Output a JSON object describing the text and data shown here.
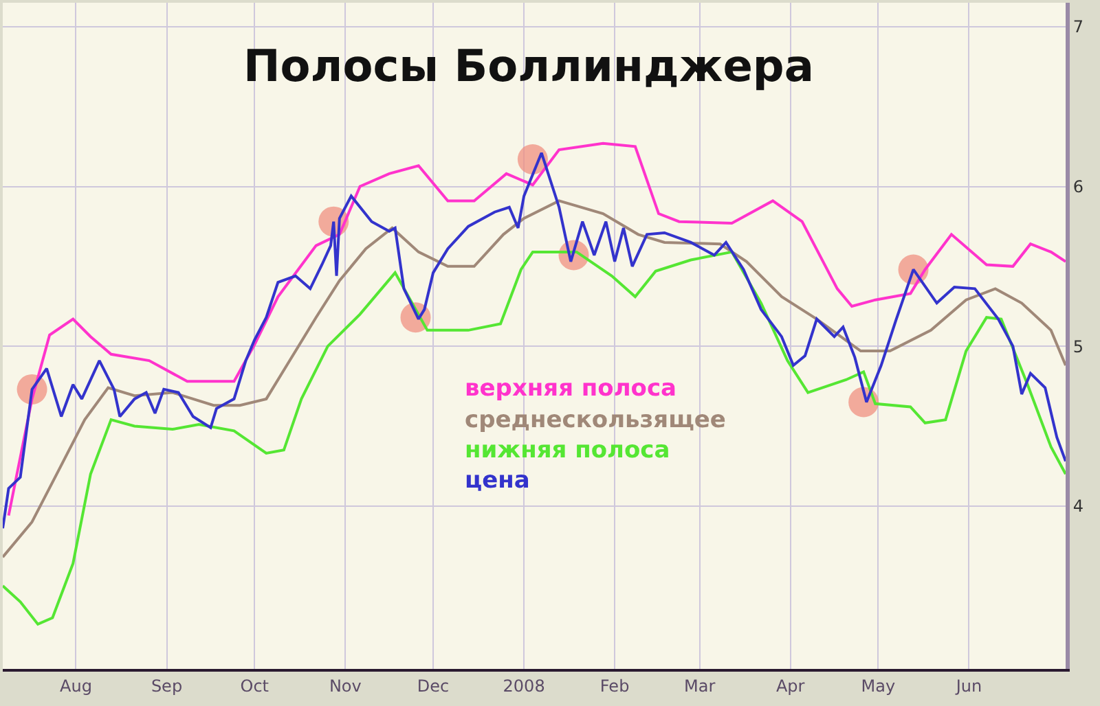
{
  "chart_data": {
    "type": "line",
    "title": "Полосы Боллинджера",
    "xlim": [
      "2007-07-07",
      "2008-07-04"
    ],
    "xticks": [
      {
        "value": "2007-08-01",
        "label": "Aug"
      },
      {
        "value": "2007-09-01",
        "label": "Sep"
      },
      {
        "value": "2007-10-01",
        "label": "Oct"
      },
      {
        "value": "2007-11-01",
        "label": "Nov"
      },
      {
        "value": "2007-12-01",
        "label": "Dec"
      },
      {
        "value": "2008-01-01",
        "label": "2008"
      },
      {
        "value": "2008-02-01",
        "label": "Feb"
      },
      {
        "value": "2008-03-01",
        "label": "Mar"
      },
      {
        "value": "2008-04-01",
        "label": "Apr"
      },
      {
        "value": "2008-05-01",
        "label": "May"
      },
      {
        "value": "2008-06-01",
        "label": "Jun"
      }
    ],
    "ylim": [
      2.98,
      7.15
    ],
    "yticks": [
      4,
      5,
      6,
      7
    ],
    "grid": true,
    "legend": false,
    "line_style": "solid",
    "marker": "none",
    "series": [
      {
        "name": "верхняя полоса",
        "color": "#ff33cc",
        "x": [
          "2007-07-09",
          "2007-07-17",
          "2007-07-23",
          "2007-07-31",
          "2007-08-06",
          "2007-08-13",
          "2007-08-26",
          "2007-09-08",
          "2007-09-24",
          "2007-10-01",
          "2007-10-09",
          "2007-10-22",
          "2007-10-30",
          "2007-11-06",
          "2007-11-16",
          "2007-11-26",
          "2007-12-06",
          "2007-12-15",
          "2007-12-26",
          "2008-01-04",
          "2008-01-13",
          "2008-01-28",
          "2008-02-08",
          "2008-02-16",
          "2008-02-23",
          "2008-03-12",
          "2008-03-26",
          "2008-04-05",
          "2008-04-17",
          "2008-04-22",
          "2008-04-30",
          "2008-05-12",
          "2008-05-17",
          "2008-05-26",
          "2008-06-07",
          "2008-06-16",
          "2008-06-22",
          "2008-06-29",
          "2008-07-04"
        ],
        "values": [
          3.94,
          4.67,
          5.07,
          5.17,
          5.06,
          4.95,
          4.91,
          4.78,
          4.78,
          5.01,
          5.31,
          5.63,
          5.7,
          6.0,
          6.08,
          6.13,
          5.91,
          5.91,
          6.08,
          6.01,
          6.23,
          6.27,
          6.25,
          5.83,
          5.78,
          5.77,
          5.91,
          5.78,
          5.36,
          5.25,
          5.29,
          5.33,
          5.48,
          5.7,
          5.51,
          5.5,
          5.64,
          5.59,
          5.53
        ]
      },
      {
        "name": "среднескользящее",
        "color": "#a08878",
        "x": [
          "2007-07-07",
          "2007-07-17",
          "2007-07-26",
          "2007-08-04",
          "2007-08-12",
          "2007-08-21",
          "2007-09-03",
          "2007-09-17",
          "2007-09-26",
          "2007-10-05",
          "2007-10-13",
          "2007-10-22",
          "2007-10-30",
          "2007-11-08",
          "2007-11-17",
          "2007-11-26",
          "2007-12-06",
          "2007-12-15",
          "2007-12-25",
          "2008-01-01",
          "2008-01-13",
          "2008-01-28",
          "2008-02-09",
          "2008-02-18",
          "2008-03-08",
          "2008-03-17",
          "2008-03-29",
          "2008-04-10",
          "2008-04-25",
          "2008-05-05",
          "2008-05-19",
          "2008-05-31",
          "2008-06-10",
          "2008-06-19",
          "2008-06-29",
          "2008-07-04"
        ],
        "values": [
          3.68,
          3.9,
          4.22,
          4.54,
          4.74,
          4.69,
          4.71,
          4.63,
          4.63,
          4.67,
          4.91,
          5.18,
          5.41,
          5.61,
          5.74,
          5.59,
          5.5,
          5.5,
          5.7,
          5.8,
          5.91,
          5.83,
          5.7,
          5.65,
          5.64,
          5.53,
          5.31,
          5.17,
          4.97,
          4.97,
          5.1,
          5.29,
          5.36,
          5.27,
          5.1,
          4.88
        ]
      },
      {
        "name": "нижняя полоса",
        "color": "#55e633",
        "x": [
          "2007-07-07",
          "2007-07-13",
          "2007-07-19",
          "2007-07-24",
          "2007-07-31",
          "2007-08-06",
          "2007-08-13",
          "2007-08-21",
          "2007-09-03",
          "2007-09-12",
          "2007-09-24",
          "2007-10-05",
          "2007-10-11",
          "2007-10-17",
          "2007-10-26",
          "2007-11-06",
          "2007-11-18",
          "2007-11-29",
          "2007-12-13",
          "2007-12-24",
          "2007-12-31",
          "2008-01-04",
          "2008-01-19",
          "2008-01-31",
          "2008-02-08",
          "2008-02-15",
          "2008-02-27",
          "2008-03-12",
          "2008-03-22",
          "2008-03-31",
          "2008-04-07",
          "2008-04-20",
          "2008-04-26",
          "2008-04-30",
          "2008-05-12",
          "2008-05-17",
          "2008-05-24",
          "2008-05-31",
          "2008-06-07",
          "2008-06-12",
          "2008-06-21",
          "2008-06-29",
          "2008-07-04"
        ],
        "values": [
          3.5,
          3.4,
          3.26,
          3.3,
          3.64,
          4.2,
          4.54,
          4.5,
          4.48,
          4.51,
          4.47,
          4.33,
          4.35,
          4.67,
          5.0,
          5.2,
          5.46,
          5.1,
          5.1,
          5.14,
          5.48,
          5.59,
          5.59,
          5.44,
          5.31,
          5.47,
          5.54,
          5.59,
          5.27,
          4.91,
          4.71,
          4.79,
          4.84,
          4.64,
          4.62,
          4.52,
          4.54,
          4.97,
          5.18,
          5.17,
          4.76,
          4.37,
          4.2
        ]
      },
      {
        "name": "цена",
        "color": "#3333cc",
        "x": [
          "2007-07-07",
          "2007-07-09",
          "2007-07-13",
          "2007-07-17",
          "2007-07-22",
          "2007-07-27",
          "2007-07-31",
          "2007-08-03",
          "2007-08-09",
          "2007-08-14",
          "2007-08-16",
          "2007-08-21",
          "2007-08-25",
          "2007-08-28",
          "2007-08-31",
          "2007-09-05",
          "2007-09-10",
          "2007-09-16",
          "2007-09-18",
          "2007-09-24",
          "2007-09-28",
          "2007-10-01",
          "2007-10-05",
          "2007-10-09",
          "2007-10-15",
          "2007-10-20",
          "2007-10-24",
          "2007-10-27",
          "2007-10-28",
          "2007-10-29",
          "2007-10-30",
          "2007-11-03",
          "2007-11-10",
          "2007-11-16",
          "2007-11-18",
          "2007-11-21",
          "2007-11-26",
          "2007-11-28",
          "2007-12-01",
          "2007-12-06",
          "2007-12-13",
          "2007-12-22",
          "2007-12-27",
          "2007-12-30",
          "2008-01-01",
          "2008-01-07",
          "2008-01-13",
          "2008-01-17",
          "2008-01-21",
          "2008-01-25",
          "2008-01-29",
          "2008-02-01",
          "2008-02-04",
          "2008-02-07",
          "2008-02-12",
          "2008-02-18",
          "2008-02-27",
          "2008-03-06",
          "2008-03-10",
          "2008-03-16",
          "2008-03-22",
          "2008-03-29",
          "2008-04-02",
          "2008-04-06",
          "2008-04-10",
          "2008-04-16",
          "2008-04-19",
          "2008-04-23",
          "2008-04-27",
          "2008-05-02",
          "2008-05-07",
          "2008-05-13",
          "2008-05-21",
          "2008-05-27",
          "2008-06-03",
          "2008-06-11",
          "2008-06-16",
          "2008-06-19",
          "2008-06-22",
          "2008-06-27",
          "2008-07-01",
          "2008-07-04"
        ],
        "values": [
          3.86,
          4.11,
          4.18,
          4.73,
          4.86,
          4.56,
          4.76,
          4.67,
          4.91,
          4.73,
          4.56,
          4.67,
          4.71,
          4.58,
          4.73,
          4.71,
          4.56,
          4.49,
          4.61,
          4.67,
          4.91,
          5.04,
          5.18,
          5.4,
          5.44,
          5.36,
          5.51,
          5.63,
          5.78,
          5.44,
          5.8,
          5.94,
          5.78,
          5.72,
          5.74,
          5.36,
          5.17,
          5.23,
          5.46,
          5.61,
          5.75,
          5.84,
          5.87,
          5.74,
          5.94,
          6.21,
          5.87,
          5.53,
          5.78,
          5.57,
          5.78,
          5.53,
          5.74,
          5.5,
          5.7,
          5.71,
          5.65,
          5.57,
          5.65,
          5.48,
          5.23,
          5.06,
          4.88,
          4.94,
          5.17,
          5.06,
          5.12,
          4.93,
          4.65,
          4.88,
          5.16,
          5.48,
          5.27,
          5.37,
          5.36,
          5.17,
          5.0,
          4.7,
          4.83,
          4.74,
          4.43,
          4.28
        ]
      },
      {
        "type": "scatter",
        "marker": "circle",
        "color": "#f08a7a",
        "x": [
          "2007-07-17",
          "2007-10-28",
          "2007-11-25",
          "2008-01-04",
          "2008-01-18",
          "2008-04-26",
          "2008-05-13"
        ],
        "values": [
          4.73,
          5.78,
          5.18,
          6.17,
          5.57,
          4.65,
          5.48
        ]
      }
    ]
  }
}
